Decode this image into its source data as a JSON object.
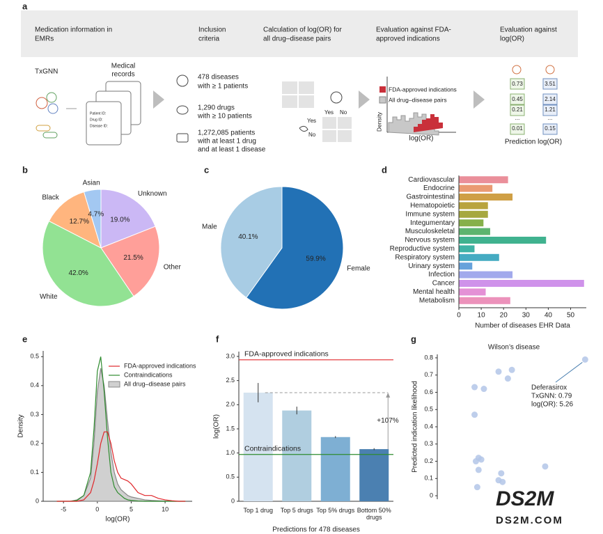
{
  "panel_labels": [
    "a",
    "b",
    "c",
    "d",
    "e",
    "f",
    "g"
  ],
  "panel_a": {
    "header": [
      [
        "Medication information in",
        "EMRs"
      ],
      [
        "Inclusion",
        "criteria"
      ],
      [
        "Calculation of log(OR) for",
        "all drug–disease pairs"
      ],
      [
        "Evaluation against FDA-",
        "approved indications"
      ],
      [
        "Evaluation against",
        "log(OR)"
      ]
    ],
    "txgnn": "TxGNN",
    "records_title": [
      "Medical",
      "records"
    ],
    "record_fields": [
      "Patient ID:",
      "Drug ID:",
      "Disease ID:"
    ],
    "criteria": [
      [
        "478 diseases",
        "with ≥ 1 patients"
      ],
      [
        "1,290 drugs",
        "with ≥ 10 patients"
      ],
      [
        "1,272,085 patients",
        "with at least 1 drug",
        "and at least 1 disease"
      ]
    ],
    "matrix_labels": [
      "Yes",
      "No",
      "Yes",
      "No"
    ],
    "legend": [
      "FDA-approved indications",
      "All drug–disease pairs"
    ],
    "density_label": "Density",
    "logor_label": "log(OR)",
    "prediction_left": [
      "0.73",
      "0.45",
      "0.21",
      "...",
      "0.01"
    ],
    "prediction_right": [
      "3.51",
      "2.14",
      "1.21",
      "...",
      "0.15"
    ],
    "prediction_title": "Prediction log(OR)"
  },
  "chart_data": [
    {
      "type": "pie",
      "categories": [
        "Unknown",
        "Other",
        "White",
        "Black",
        "Asian"
      ],
      "values": [
        19.0,
        21.5,
        42.0,
        12.7,
        4.7
      ],
      "value_labels": [
        "19.0%",
        "21.5%",
        "42.0%",
        "12.7%",
        "4.7%"
      ],
      "colors": [
        "#cbb8f5",
        "#ff9f99",
        "#92e293",
        "#ffb57e",
        "#a3c8f2"
      ]
    },
    {
      "type": "pie",
      "categories": [
        "Female",
        "Male"
      ],
      "values": [
        59.9,
        40.1
      ],
      "value_labels": [
        "59.9%",
        "40.1%"
      ],
      "colors": [
        "#2271b5",
        "#a8cce4"
      ]
    },
    {
      "type": "hbar",
      "categories": [
        "Cardiovascular",
        "Endocrine",
        "Gastrointestinal",
        "Hematopoietic",
        "Immune system",
        "Integumentary",
        "Musculoskeletal",
        "Nervous system",
        "Reproductive system",
        "Respiratory system",
        "Urinary system",
        "Infection",
        "Cancer",
        "Mental health",
        "Metabolism"
      ],
      "values": [
        22,
        15,
        24,
        13,
        13,
        11,
        14,
        39,
        7,
        18,
        6,
        24,
        56,
        12,
        23
      ],
      "colors": [
        "#ea8f9a",
        "#ea9a72",
        "#cf9f45",
        "#b9a43e",
        "#a6a83f",
        "#86b04a",
        "#5db46f",
        "#40b28f",
        "#3fb3a5",
        "#45abc2",
        "#67a2db",
        "#a2a9ec",
        "#cf92ea",
        "#e491d6",
        "#ec92bb"
      ],
      "xlim": [
        0,
        57
      ],
      "xticks": [
        0,
        10,
        20,
        30,
        40,
        50
      ],
      "xlabel": "Number of diseases EHR Data"
    },
    {
      "type": "line",
      "x": [
        -6,
        -5,
        -4,
        -3,
        -2,
        -1,
        -0.5,
        0,
        0.5,
        1,
        1.5,
        2,
        2.5,
        3,
        3.5,
        4,
        4.5,
        5,
        6,
        7,
        8,
        9,
        10,
        11,
        12,
        13
      ],
      "series": [
        {
          "name": "FDA-approved indications",
          "color": "#e0262a",
          "values": [
            0,
            0,
            0,
            0,
            0.005,
            0.03,
            0.07,
            0.13,
            0.2,
            0.24,
            0.24,
            0.2,
            0.14,
            0.1,
            0.08,
            0.075,
            0.07,
            0.06,
            0.03,
            0.02,
            0.02,
            0.01,
            0.005,
            0.002,
            0,
            0
          ]
        },
        {
          "name": "Contraindications",
          "color": "#2e8b2e",
          "values": [
            0,
            0,
            0,
            0.003,
            0.02,
            0.1,
            0.25,
            0.45,
            0.5,
            0.38,
            0.22,
            0.1,
            0.05,
            0.03,
            0.02,
            0.01,
            0.005,
            0.003,
            0.001,
            0,
            0,
            0,
            0,
            0,
            0,
            0
          ]
        },
        {
          "name": "All drug–disease pairs",
          "color": "#a0a0a0",
          "area": true,
          "values": [
            0,
            0,
            0,
            0.005,
            0.02,
            0.08,
            0.2,
            0.38,
            0.46,
            0.4,
            0.28,
            0.17,
            0.1,
            0.06,
            0.04,
            0.03,
            0.02,
            0.015,
            0.01,
            0.005,
            0.003,
            0.002,
            0.001,
            0,
            0,
            0
          ]
        }
      ],
      "xlim": [
        -8,
        14
      ],
      "xticks": [
        -5,
        0,
        5,
        10
      ],
      "ylim": [
        0,
        0.52
      ],
      "yticks": [
        0,
        0.1,
        0.2,
        0.3,
        0.4,
        0.5
      ],
      "xlabel": "log(OR)",
      "ylabel": "Density",
      "legend": "upper right"
    },
    {
      "type": "bar",
      "categories": [
        "Top 1 drug",
        "Top 5 drugs",
        "Top 5% drugs",
        "Bottom 50% drugs"
      ],
      "values": [
        2.25,
        1.88,
        1.33,
        1.08
      ],
      "errors": [
        0.2,
        0.08,
        0.02,
        0.02
      ],
      "colors": [
        "#d5e3f0",
        "#b0cee0",
        "#7eafd3",
        "#4b80b1"
      ],
      "ylim": [
        0,
        3.1
      ],
      "yticks": [
        0,
        0.5,
        {
          "value": 1,
          "label": "1.0"
        },
        1.5,
        {
          "value": 2,
          "label": "2.0"
        },
        2.5,
        {
          "value": 3,
          "label": "3.0"
        }
      ],
      "ylabel": "log(OR)",
      "xlabel": "Predictions for 478 diseases",
      "reference_lines": [
        {
          "label": "FDA-approved indications",
          "value": 2.93,
          "color": "#e0262a"
        },
        {
          "label": "Contraindications",
          "value": 0.97,
          "color": "#2e8b2e"
        }
      ],
      "annotation": "+107%"
    },
    {
      "type": "scatter",
      "title": "Wilson’s disease",
      "x": [
        0.96,
        0.31,
        0.41,
        0.38,
        0.13,
        0.2,
        0.13,
        0.16,
        0.14,
        0.18,
        0.16,
        0.33,
        0.66,
        0.31,
        0.34,
        0.15
      ],
      "y": [
        0.79,
        0.72,
        0.73,
        0.68,
        0.63,
        0.62,
        0.47,
        0.22,
        0.2,
        0.21,
        0.15,
        0.13,
        0.17,
        0.09,
        0.08,
        0.05
      ],
      "xlim": [
        -0.15,
        1
      ],
      "ylim": [
        -0.02,
        0.82
      ],
      "yticks": [
        0,
        0.1,
        0.2,
        0.3,
        0.4,
        0.5,
        0.6,
        0.7,
        0.8
      ],
      "ylabel": "Predicted indication likelihood",
      "color": "#b3c5e8",
      "annotation": [
        "Deferasirox",
        "TxGNN: 0.79",
        "log(OR): 5.26"
      ]
    }
  ],
  "watermark": [
    "DS2M",
    "DS2M.COM"
  ]
}
